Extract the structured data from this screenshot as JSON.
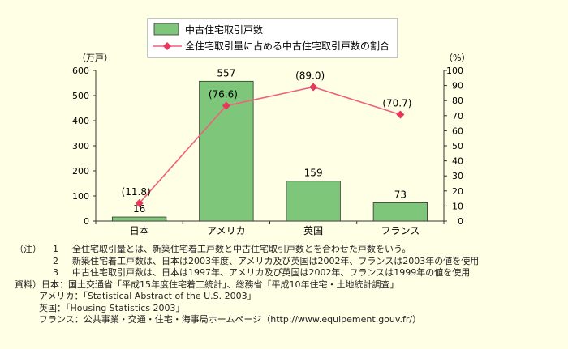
{
  "chart_data": {
    "type": "bar+line",
    "categories": [
      "日本",
      "アメリカ",
      "英国",
      "フランス"
    ],
    "bar_series": {
      "name": "中古住宅取引戸数",
      "values": [
        16,
        557,
        159,
        73
      ],
      "labels": [
        "16",
        "557",
        "159",
        "73"
      ],
      "color": "#7dc67a"
    },
    "line_series": {
      "name": "全住宅取引量に占める中古住宅取引戸数の割合",
      "values": [
        11.8,
        76.6,
        89.0,
        70.7
      ],
      "labels": [
        "(11.8)",
        "(76.6)",
        "(89.0)",
        "(70.7)"
      ],
      "color": "#f0607a"
    },
    "y_left": {
      "unit": "（万戸）",
      "ylim": [
        0,
        600
      ],
      "ticks": [
        "0",
        "100",
        "200",
        "300",
        "400",
        "500",
        "600"
      ]
    },
    "y_right": {
      "unit": "（%）",
      "ylim": [
        0,
        100
      ],
      "ticks": [
        "0",
        "10",
        "20",
        "30",
        "40",
        "50",
        "60",
        "70",
        "80",
        "90",
        "100"
      ]
    },
    "legend_position": "top-center"
  },
  "notes": {
    "prefix": "（注）",
    "items": [
      {
        "num": "1",
        "text": "全住宅取引量とは、新築住宅着工戸数と中古住宅取引戸数とを合わせた戸数をいう。"
      },
      {
        "num": "2",
        "text": "新築住宅着工戸数は、日本は2003年度、アメリカ及び英国は2002年、フランスは2003年の値を使用"
      },
      {
        "num": "3",
        "text": "中古住宅取引戸数は、日本は1997年、アメリカ及び英国は2002年、フランスは1999年の値を使用"
      }
    ]
  },
  "sources": {
    "prefix": "資料）",
    "lines": [
      "日本：国土交通省「平成15年度住宅着工統計」、総務省「平成10年住宅・土地統計調査」",
      "アメリカ：「Statistical Abstract of the U.S. 2003」",
      "英国：「Housing Statistics 2003」",
      "フランス：公共事業・交通・住宅・海事局ホームページ（http://www.equipement.gouv.fr/）"
    ]
  }
}
